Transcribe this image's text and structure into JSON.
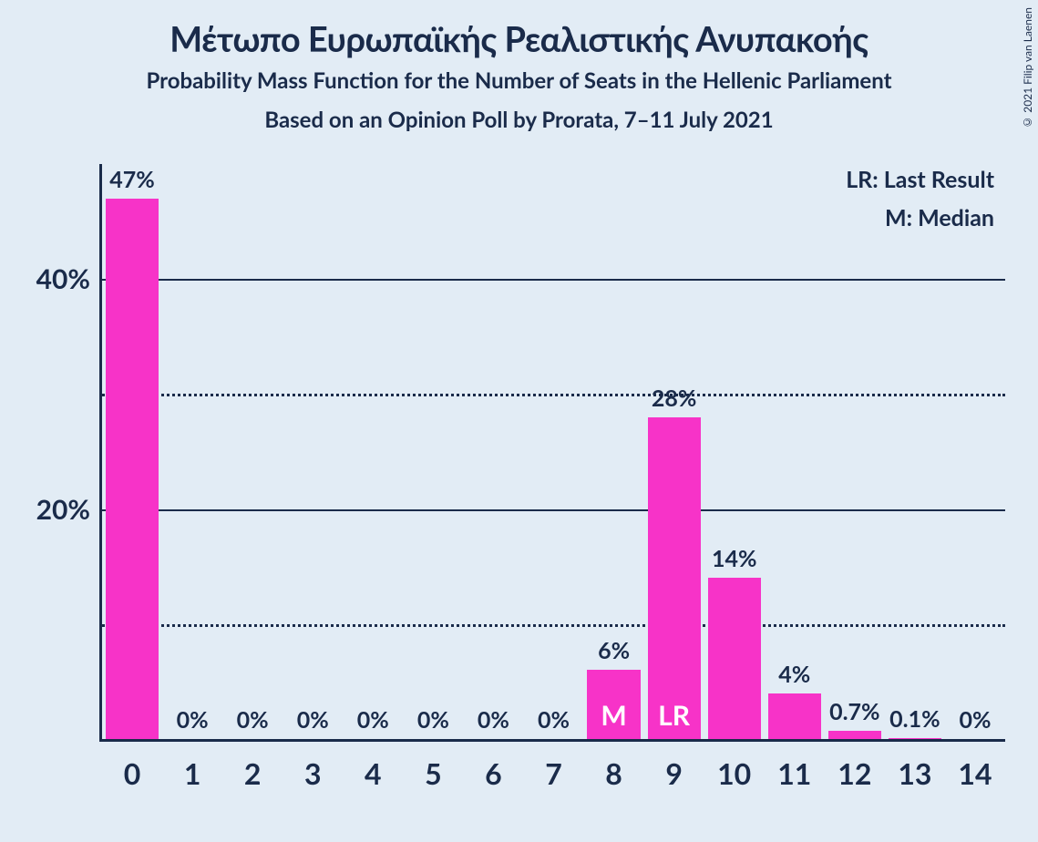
{
  "title": "Μέτωπο Ευρωπαϊκής Ρεαλιστικής Ανυπακοής",
  "subtitle1": "Probability Mass Function for the Number of Seats in the Hellenic Parliament",
  "subtitle2": "Based on an Opinion Poll by Prorata, 7–11 July 2021",
  "copyright": "© 2021 Filip van Laenen",
  "legend": {
    "lr": "LR: Last Result",
    "m": "M: Median"
  },
  "chart": {
    "type": "bar",
    "background_color": "#e2ecf5",
    "bar_color": "#f733c8",
    "text_color": "#1a2b4a",
    "axis_color": "#1a2b4a",
    "ylim": [
      0,
      50
    ],
    "y_major_ticks": [
      20,
      40
    ],
    "y_minor_ticks": [
      10,
      30
    ],
    "y_tick_labels": {
      "20": "20%",
      "40": "40%"
    },
    "categories": [
      "0",
      "1",
      "2",
      "3",
      "4",
      "5",
      "6",
      "7",
      "8",
      "9",
      "10",
      "11",
      "12",
      "13",
      "14"
    ],
    "values": [
      47,
      0,
      0,
      0,
      0,
      0,
      0,
      0,
      6,
      28,
      14,
      4,
      0.7,
      0.1,
      0
    ],
    "value_labels": [
      "47%",
      "0%",
      "0%",
      "0%",
      "0%",
      "0%",
      "0%",
      "0%",
      "6%",
      "28%",
      "14%",
      "4%",
      "0.7%",
      "0.1%",
      "0%"
    ],
    "markers": {
      "8": "M",
      "9": "LR"
    },
    "xtick_fontsize": 32,
    "ytick_fontsize": 30,
    "bar_label_fontsize": 25,
    "bar_width_ratio": 0.88
  }
}
